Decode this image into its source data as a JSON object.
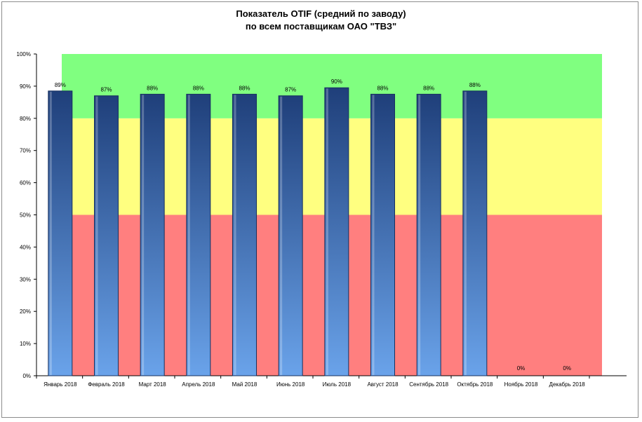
{
  "chart_data": {
    "type": "bar",
    "title_lines": [
      "Показатель OTIF  (средний по заводу)",
      "по всем поставщикам ОАО \"ТВЗ\""
    ],
    "categories": [
      "Январь 2018",
      "Февраль 2018",
      "Март 2018",
      "Апрель 2018",
      "Май 2018",
      "Июнь 2018",
      "Июль 2018",
      "Август 2018",
      "Сентябрь 2018",
      "Октябрь 2018",
      "Ноябрь 2018",
      "Декабрь 2018"
    ],
    "values": [
      88.5,
      87,
      87.5,
      87.5,
      87.5,
      87,
      89.5,
      87.5,
      87.5,
      88.5,
      0,
      0
    ],
    "data_labels": [
      "89%",
      "87%",
      "88%",
      "88%",
      "88%",
      "87%",
      "90%",
      "88%",
      "88%",
      "88%",
      "0%",
      "0%"
    ],
    "y_ticks": [
      "0%",
      "10%",
      "20%",
      "30%",
      "40%",
      "50%",
      "60%",
      "70%",
      "80%",
      "90%",
      "100%"
    ],
    "ylim": [
      0,
      100
    ],
    "bands": [
      {
        "from": 0,
        "to": 50,
        "color": "#ff7f7f"
      },
      {
        "from": 50,
        "to": 80,
        "color": "#ffff80"
      },
      {
        "from": 80,
        "to": 100,
        "color": "#80ff80"
      }
    ],
    "bar_colors": {
      "top": "#1f3f7a",
      "bottom": "#6aa3ea"
    },
    "xlabel": "",
    "ylabel": ""
  }
}
